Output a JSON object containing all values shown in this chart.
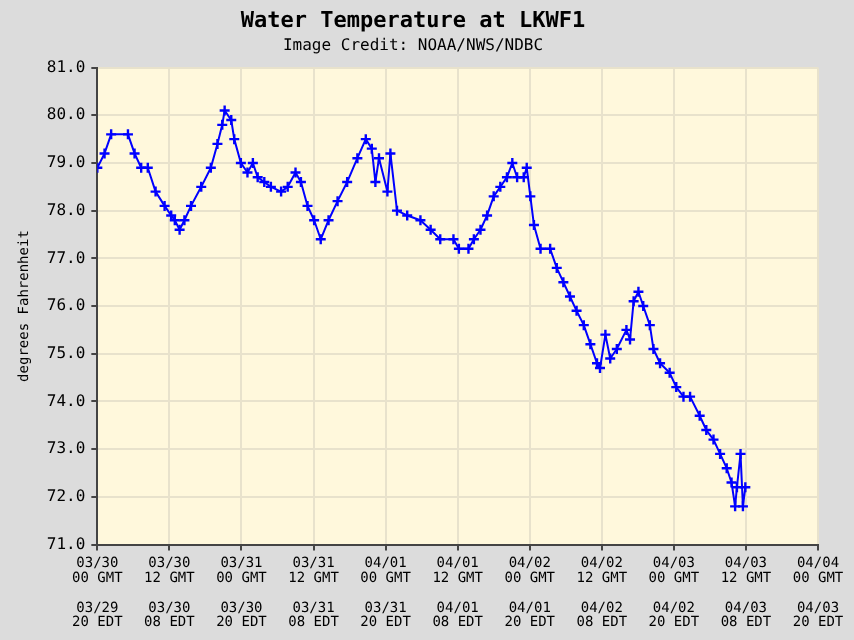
{
  "chart_data": {
    "type": "line",
    "title": "Water Temperature at LKWF1",
    "subtitle": "Image Credit: NOAA/NWS/NDBC",
    "ylabel": "degrees Fahrenheit",
    "x": [
      "--03-30T00:00",
      "--03-30T01:12",
      "--03-30T02:18",
      "--03-30T05:06",
      "--03-30T06:12",
      "--03-30T07:18",
      "--03-30T08:24",
      "--03-30T09:42",
      "--03-30T11:12",
      "--03-30T12:18",
      "--03-30T12:54",
      "--03-30T13:42",
      "--03-30T14:30",
      "--03-30T15:36",
      "--03-30T17:18",
      "--03-30T18:54",
      "--03-30T20:00",
      "--03-30T20:48",
      "--03-30T21:12",
      "--03-30T22:18",
      "--03-30T22:48",
      "--03-30T23:54",
      "--03-31T01:00",
      "--03-31T01:54",
      "--03-31T02:42",
      "--03-31T03:48",
      "--03-31T04:54",
      "--03-31T06:36",
      "--03-31T07:42",
      "--03-31T09:00",
      "--03-31T09:54",
      "--03-31T11:00",
      "--03-31T12:06",
      "--03-31T13:12",
      "--03-31T14:30",
      "--03-31T16:00",
      "--03-31T17:36",
      "--03-31T19:18",
      "--03-31T20:42",
      "--03-31T21:42",
      "--03-31T22:18",
      "--03-31T22:54",
      "--04-01T00:18",
      "--04-01T00:48",
      "--04-01T01:54",
      "--04-01T03:36",
      "--04-01T05:48",
      "--04-01T07:30",
      "--04-01T09:06",
      "--04-01T11:18",
      "--04-01T12:12",
      "--04-01T13:48",
      "--04-01T14:42",
      "--04-01T15:48",
      "--04-01T16:54",
      "--04-01T18:00",
      "--04-01T19:06",
      "--04-01T20:12",
      "--04-01T21:06",
      "--04-01T21:54",
      "--04-01T23:00",
      "--04-01T23:30",
      "--04-02T00:06",
      "--04-02T00:42",
      "--04-02T01:48",
      "--04-02T03:24",
      "--04-02T04:30",
      "--04-02T05:36",
      "--04-02T06:42",
      "--04-02T07:48",
      "--04-02T09:00",
      "--04-02T10:06",
      "--04-02T11:12",
      "--04-02T11:42",
      "--04-02T12:36",
      "--04-02T13:24",
      "--04-02T14:30",
      "--04-02T16:06",
      "--04-02T16:42",
      "--04-02T17:18",
      "--04-02T18:06",
      "--04-02T18:54",
      "--04-02T20:00",
      "--04-02T20:36",
      "--04-02T21:42",
      "--04-02T23:18",
      "--04-03T00:24",
      "--04-03T01:36",
      "--04-03T02:42",
      "--04-03T04:18",
      "--04-03T05:24",
      "--04-03T06:36",
      "--04-03T07:42",
      "--04-03T08:48",
      "--04-03T09:36",
      "--04-03T10:12",
      "--04-03T10:30",
      "--04-03T11:06",
      "--04-03T11:30",
      "--04-03T11:54"
    ],
    "series": [
      {
        "color": "#0000ff",
        "values": [
          78.9,
          79.2,
          79.6,
          79.6,
          79.2,
          78.9,
          78.9,
          78.4,
          78.1,
          77.9,
          77.8,
          77.6,
          77.8,
          78.1,
          78.5,
          78.9,
          79.4,
          79.8,
          80.1,
          79.9,
          79.5,
          79.0,
          78.8,
          79.0,
          78.7,
          78.6,
          78.5,
          78.4,
          78.5,
          78.8,
          78.6,
          78.1,
          77.8,
          77.4,
          77.8,
          78.2,
          78.6,
          79.1,
          79.5,
          79.3,
          78.6,
          79.1,
          78.4,
          79.2,
          78.0,
          77.9,
          77.8,
          77.6,
          77.4,
          77.4,
          77.2,
          77.2,
          77.4,
          77.6,
          77.9,
          78.3,
          78.5,
          78.7,
          79.0,
          78.7,
          78.7,
          78.9,
          78.3,
          77.7,
          77.2,
          77.2,
          76.8,
          76.5,
          76.2,
          75.9,
          75.6,
          75.2,
          74.8,
          74.7,
          75.4,
          74.9,
          75.1,
          75.5,
          75.3,
          76.1,
          76.3,
          76.0,
          75.6,
          75.1,
          74.8,
          74.6,
          74.3,
          74.1,
          74.1,
          73.7,
          73.4,
          73.2,
          72.9,
          72.6,
          72.3,
          71.8,
          72.2,
          72.9,
          71.8,
          72.2
        ]
      }
    ],
    "xlim": [
      "--03-30T00:00",
      "--04-04T00:00"
    ],
    "xticks": [
      {
        "value": "--03-30T00:00",
        "label": "03/30\n00 GMT\n\n03/29\n20 EDT"
      },
      {
        "value": "--03-30T12:00",
        "label": "03/30\n12 GMT\n\n03/30\n08 EDT"
      },
      {
        "value": "--03-31T00:00",
        "label": "03/31\n00 GMT\n\n03/30\n20 EDT"
      },
      {
        "value": "--03-31T12:00",
        "label": "03/31\n12 GMT\n\n03/31\n08 EDT"
      },
      {
        "value": "--04-01T00:00",
        "label": "04/01\n00 GMT\n\n03/31\n20 EDT"
      },
      {
        "value": "--04-01T12:00",
        "label": "04/01\n12 GMT\n\n04/01\n08 EDT"
      },
      {
        "value": "--04-02T00:00",
        "label": "04/02\n00 GMT\n\n04/01\n20 EDT"
      },
      {
        "value": "--04-02T12:00",
        "label": "04/02\n12 GMT\n\n04/02\n08 EDT"
      },
      {
        "value": "--04-03T00:00",
        "label": "04/03\n00 GMT\n\n04/02\n20 EDT"
      },
      {
        "value": "--04-03T12:00",
        "label": "04/03\n12 GMT\n\n04/03\n08 EDT"
      },
      {
        "value": "--04-04T00:00",
        "label": "04/04\n00 GMT\n\n04/03\n20 EDT"
      }
    ],
    "ylim": [
      71,
      81
    ],
    "yticks": [
      {
        "value": 71,
        "label": "71.0"
      },
      {
        "value": 72,
        "label": "72.0"
      },
      {
        "value": 73,
        "label": "73.0"
      },
      {
        "value": 74,
        "label": "74.0"
      },
      {
        "value": 75,
        "label": "75.0"
      },
      {
        "value": 76,
        "label": "76.0"
      },
      {
        "value": 77,
        "label": "77.0"
      },
      {
        "value": 78,
        "label": "78.0"
      },
      {
        "value": 79,
        "label": "79.0"
      },
      {
        "value": 80,
        "label": "80.0"
      },
      {
        "value": 81,
        "label": "81.0"
      }
    ],
    "grid": true,
    "legend": false,
    "marker": "cross",
    "line_style": "solid"
  }
}
